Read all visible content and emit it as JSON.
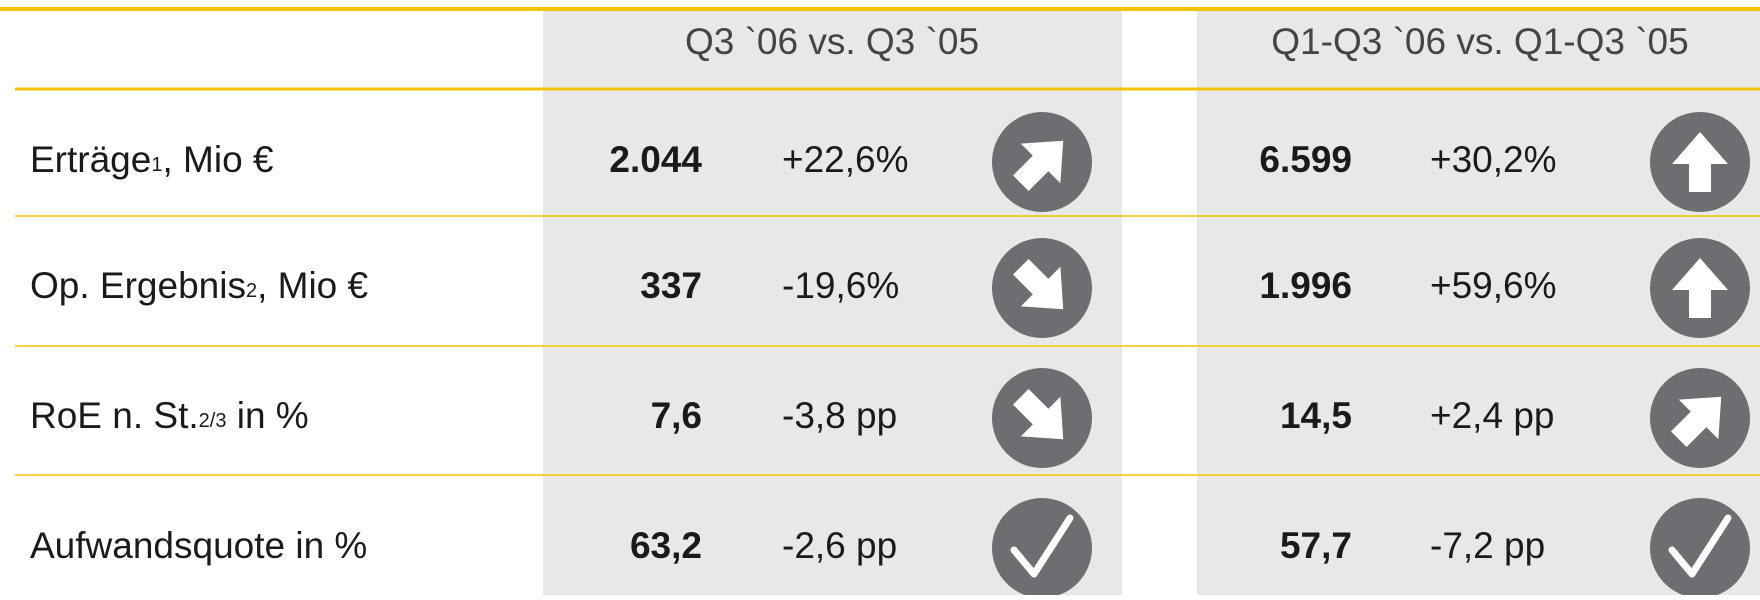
{
  "table": {
    "header": [
      "Q3 `06 vs. Q3 `05",
      "Q1-Q3 `06 vs. Q1-Q3 `05"
    ],
    "rows": [
      {
        "label": {
          "text": "Erträge",
          "sup": "1",
          "rest": ", Mio €"
        },
        "cells": [
          {
            "value": "2.044",
            "change": "+22,6%",
            "trend": "up-right"
          },
          {
            "value": "6.599",
            "change": "+30,2%",
            "trend": "up"
          }
        ]
      },
      {
        "label": {
          "text": "Op. Ergebnis",
          "sup": "2",
          "rest": ", Mio €"
        },
        "cells": [
          {
            "value": "337",
            "change": "-19,6%",
            "trend": "down-right"
          },
          {
            "value": "1.996",
            "change": "+59,6%",
            "trend": "up"
          }
        ]
      },
      {
        "label": {
          "text": "RoE n. St.",
          "sup": "2/3",
          "rest": " in %"
        },
        "cells": [
          {
            "value": "7,6",
            "change": "-3,8 pp",
            "trend": "down-right"
          },
          {
            "value": "14,5",
            "change": "+2,4 pp",
            "trend": "up-right"
          }
        ]
      },
      {
        "label": {
          "text": "Aufwandsquote in %"
        },
        "cells": [
          {
            "value": "63,2",
            "change": "-2,6 pp",
            "trend": "check"
          },
          {
            "value": "57,7",
            "change": "-7,2 pp",
            "trend": "check"
          }
        ]
      }
    ]
  }
}
